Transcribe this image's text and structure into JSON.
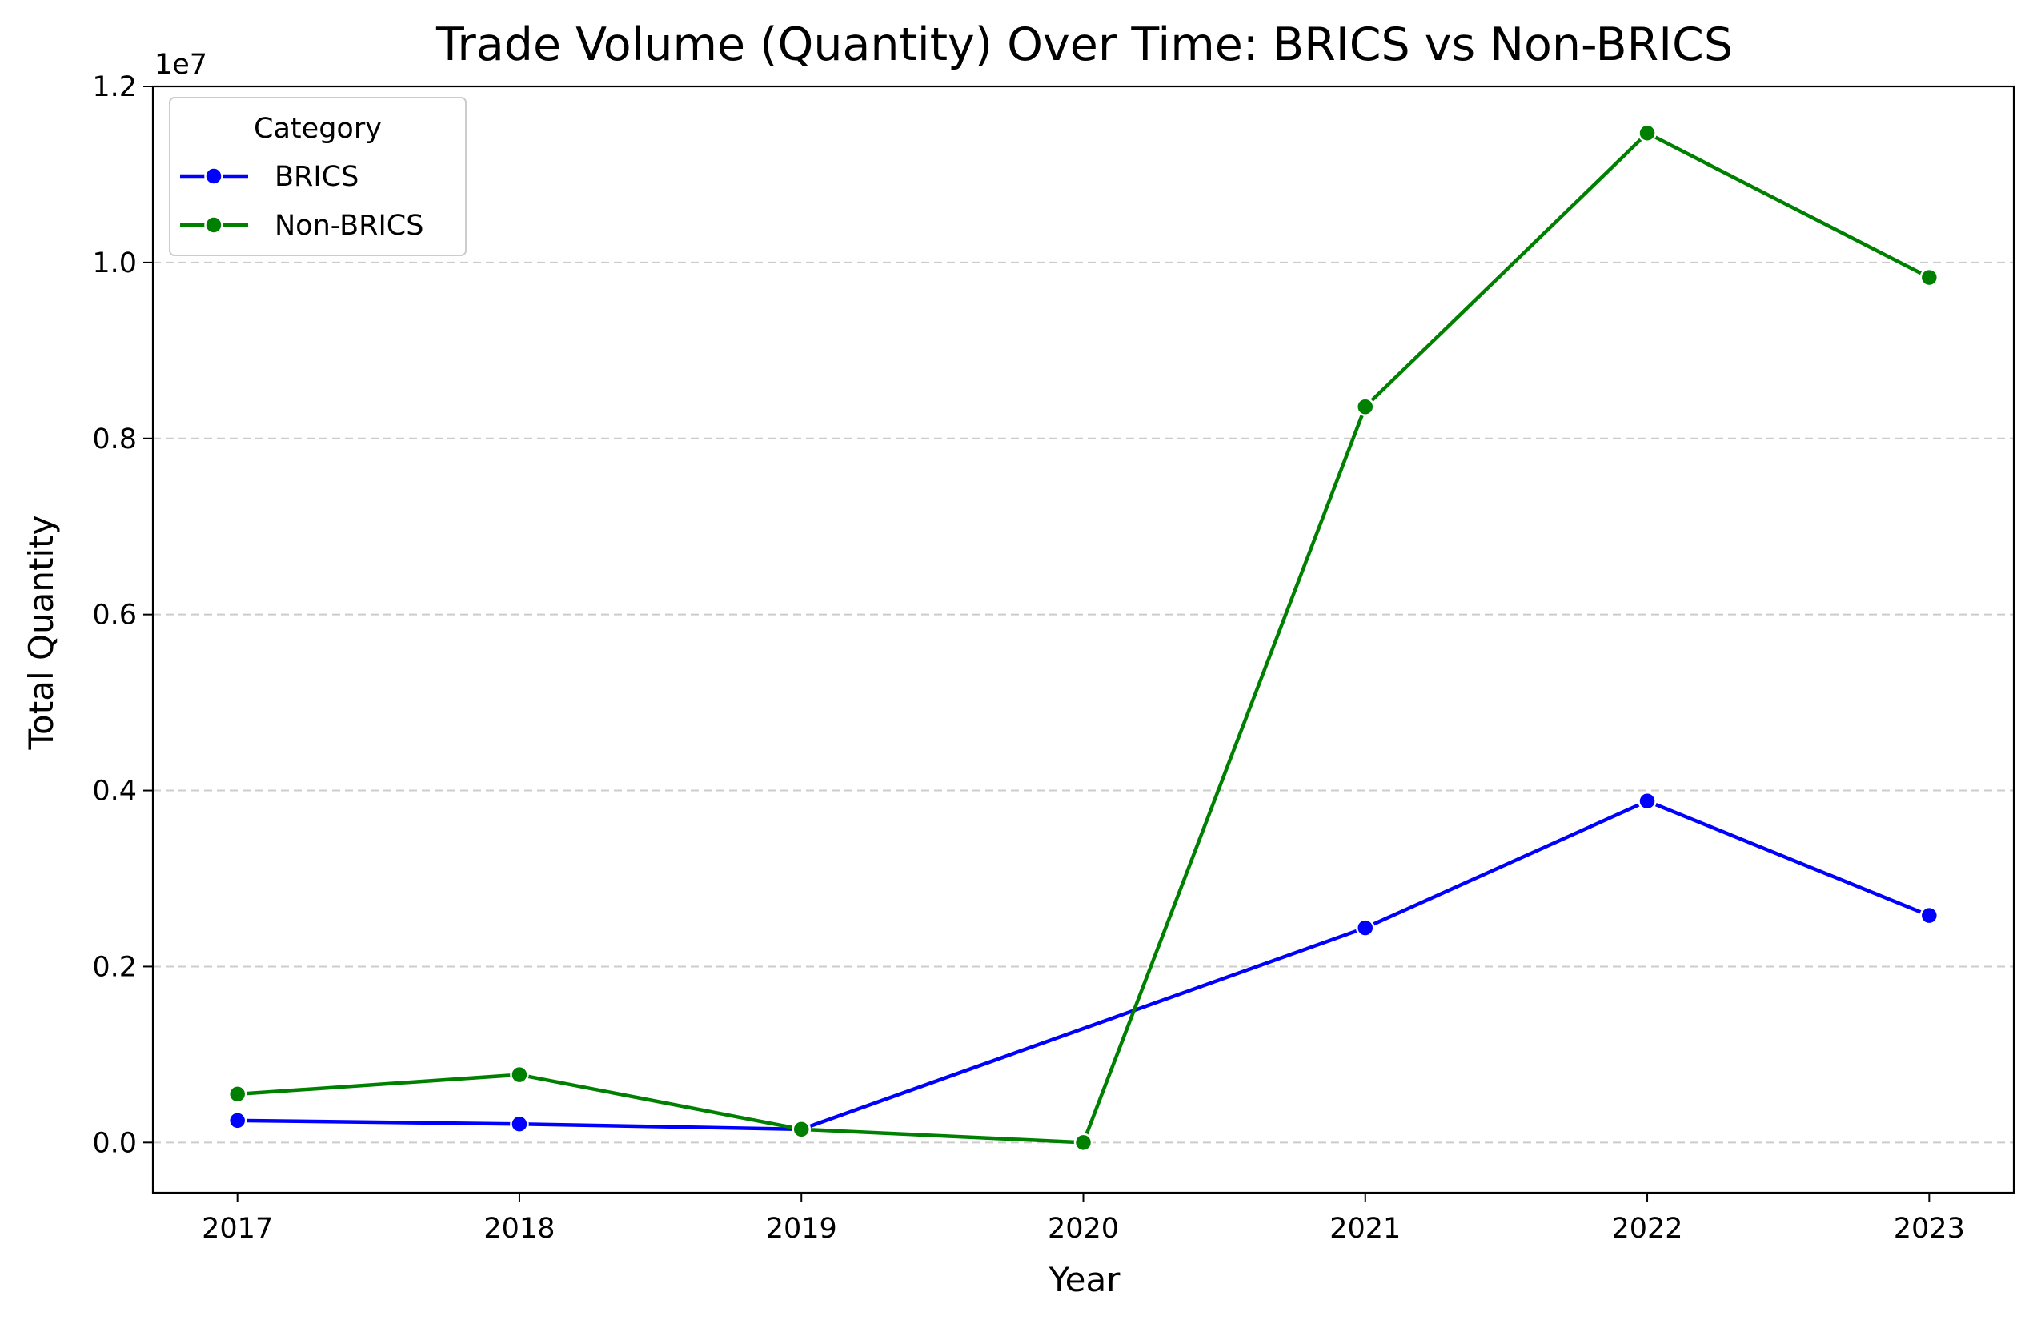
{
  "chart_data": {
    "type": "line",
    "title": "Trade Volume (Quantity) Over Time: BRICS vs Non-BRICS",
    "xlabel": "Year",
    "ylabel": "Total Quantity",
    "y_offset_label": "1e7",
    "x": [
      "2017",
      "2018",
      "2019",
      "2020",
      "2021",
      "2022",
      "2023"
    ],
    "x_values": [
      2017,
      2018,
      2019,
      2020,
      2021,
      2022,
      2023
    ],
    "xlim": [
      2016.7,
      2023.3
    ],
    "ylim": [
      -0.057,
      1.2
    ],
    "y_ticks": [
      0.0,
      0.2,
      0.4,
      0.6,
      0.8,
      1.0,
      1.2
    ],
    "y_tick_labels": [
      "0.0",
      "0.2",
      "0.4",
      "0.6",
      "0.8",
      "1.0",
      "1.2"
    ],
    "y_unit_multiplier": 10000000,
    "grid": "horizontal dashed",
    "legend": {
      "title": "Category",
      "placement": "top-left"
    },
    "series": [
      {
        "name": "BRICS",
        "color": "#0000ff",
        "values": [
          0.025,
          0.021,
          0.015,
          null,
          0.244,
          0.388,
          0.258
        ]
      },
      {
        "name": "Non-BRICS",
        "color": "#008000",
        "values": [
          0.055,
          0.077,
          0.015,
          0.0,
          0.836,
          1.147,
          0.983
        ]
      }
    ]
  }
}
